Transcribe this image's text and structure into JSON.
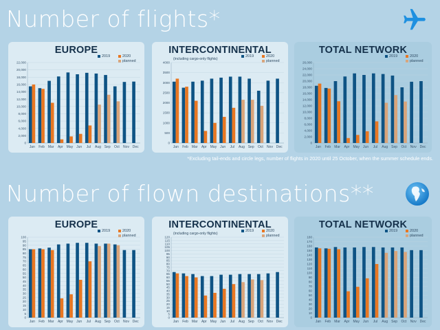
{
  "sections": [
    {
      "title": "Number of flights*"
    },
    {
      "title": "Number of flown destinations**"
    }
  ],
  "footnote": "*Excluding tail-ends and circle legs, number of flights in 2020 until 25 October, when the summer schedule ends.",
  "legend": {
    "y2019": "2019",
    "y2020": "2020",
    "planned": "planned"
  },
  "colors": {
    "y2019": "#0e5384",
    "y2020": "#e87722",
    "planned": "#d9a47a"
  },
  "chart_data": [
    {
      "type": "bar",
      "title": "EUROPE",
      "subtitle": "",
      "categories": [
        "Jan",
        "Feb",
        "Mar",
        "Apr",
        "May",
        "Jun",
        "Jul",
        "Aug",
        "Sep",
        "Oct",
        "Nov",
        "Dec"
      ],
      "yticks": [
        "0",
        "2,000",
        "4,000",
        "6,000",
        "8,000",
        "10,000",
        "12,000",
        "14,000",
        "16,000",
        "18,000",
        "20,000",
        "22,000"
      ],
      "ylim": [
        0,
        22000
      ],
      "series": [
        {
          "name": "2019",
          "values": [
            15500,
            15000,
            17000,
            18200,
            19300,
            18800,
            19200,
            19000,
            18600,
            15500,
            16700,
            16800
          ]
        },
        {
          "name": "2020",
          "values": [
            16000,
            14800,
            11000,
            1000,
            1800,
            2500,
            4800,
            10500,
            13200,
            11400,
            null,
            null
          ],
          "planned": [
            false,
            false,
            false,
            false,
            false,
            false,
            false,
            true,
            true,
            true,
            false,
            false
          ]
        }
      ]
    },
    {
      "type": "bar",
      "title": "INTERCONTINENTAL",
      "subtitle": "(including cargo-only flights)",
      "categories": [
        "Jan",
        "Feb",
        "Mar",
        "Apr",
        "May",
        "Jun",
        "Jul",
        "Aug",
        "Sep",
        "Oct",
        "Nov",
        "Dec"
      ],
      "yticks": [
        "0",
        "500",
        "1000",
        "1500",
        "2000",
        "2500",
        "3000",
        "3500",
        "4000"
      ],
      "ylim": [
        0,
        4000
      ],
      "series": [
        {
          "name": "2019",
          "values": [
            3050,
            2750,
            3050,
            3100,
            3200,
            3250,
            3300,
            3300,
            3200,
            2600,
            3100,
            3200
          ]
        },
        {
          "name": "2020",
          "values": [
            3200,
            2800,
            2100,
            600,
            1000,
            1300,
            1750,
            2150,
            2150,
            1850,
            null,
            null
          ],
          "planned": [
            false,
            false,
            false,
            false,
            false,
            false,
            false,
            true,
            true,
            true,
            false,
            false
          ]
        }
      ]
    },
    {
      "type": "bar",
      "title": "TOTAL NETWORK",
      "subtitle": "",
      "categories": [
        "Jan",
        "Feb",
        "Mar",
        "Apr",
        "May",
        "Jun",
        "Jul",
        "Aug",
        "Sep",
        "Oct",
        "Nov",
        "Dec"
      ],
      "yticks": [
        "0",
        "2,000",
        "4,000",
        "6,000",
        "8,000",
        "10,000",
        "12,000",
        "14,000",
        "16,000",
        "18,000",
        "20,000",
        "22,000",
        "24,000",
        "26,000"
      ],
      "ylim": [
        0,
        26000
      ],
      "series": [
        {
          "name": "2019",
          "values": [
            18500,
            17800,
            20000,
            21500,
            22500,
            22000,
            22500,
            22300,
            21800,
            18000,
            19800,
            20000
          ]
        },
        {
          "name": "2020",
          "values": [
            19200,
            17600,
            13500,
            1600,
            2600,
            3800,
            7000,
            13000,
            15500,
            13400,
            null,
            null
          ],
          "planned": [
            false,
            false,
            false,
            false,
            false,
            false,
            false,
            true,
            true,
            true,
            false,
            false
          ]
        }
      ]
    },
    {
      "type": "bar",
      "title": "EUROPE",
      "subtitle": "",
      "categories": [
        "Jan",
        "Feb",
        "Mar",
        "Apr",
        "May",
        "Jun",
        "Jul",
        "Aug",
        "Sep",
        "Oct",
        "Nov",
        "Dec"
      ],
      "yticks": [
        "0",
        "5",
        "10",
        "15",
        "20",
        "25",
        "30",
        "35",
        "40",
        "45",
        "50",
        "55",
        "60",
        "65",
        "70",
        "75",
        "80",
        "85",
        "90",
        "95",
        "100"
      ],
      "ylim": [
        0,
        100
      ],
      "series": [
        {
          "name": "2019",
          "values": [
            85,
            86,
            87,
            91,
            92,
            93,
            93,
            92,
            92,
            91,
            84,
            84
          ]
        },
        {
          "name": "2020",
          "values": [
            85,
            85,
            84,
            24,
            29,
            47,
            70,
            89,
            92,
            90,
            null,
            null
          ],
          "planned": [
            false,
            false,
            false,
            false,
            false,
            false,
            false,
            true,
            true,
            true,
            false,
            false
          ]
        }
      ]
    },
    {
      "type": "bar",
      "title": "INTERCONTINENTAL",
      "subtitle": "(including cargo-only flights)",
      "categories": [
        "Jan",
        "Feb",
        "Mar",
        "Apr",
        "May",
        "Jun",
        "Jul",
        "Aug",
        "Sep",
        "Oct",
        "Nov",
        "Dec"
      ],
      "yticks": [
        "0",
        "5",
        "10",
        "15",
        "20",
        "25",
        "30",
        "35",
        "40",
        "45",
        "50",
        "55",
        "60",
        "65",
        "70",
        "75",
        "80",
        "85",
        "90",
        "95",
        "100",
        "105",
        "110",
        "115",
        "120"
      ],
      "ylim": [
        0,
        120
      ],
      "series": [
        {
          "name": "2019",
          "values": [
            68,
            66,
            65,
            62,
            62,
            64,
            64,
            65,
            65,
            65,
            66,
            68
          ]
        },
        {
          "name": "2020",
          "values": [
            66,
            62,
            60,
            33,
            37,
            43,
            50,
            53,
            57,
            56,
            null,
            null
          ],
          "planned": [
            false,
            false,
            false,
            false,
            false,
            false,
            false,
            true,
            true,
            true,
            false,
            false
          ]
        }
      ]
    },
    {
      "type": "bar",
      "title": "TOTAL NETWORK",
      "subtitle": "",
      "categories": [
        "Jan",
        "Feb",
        "Mar",
        "Apr",
        "May",
        "Jun",
        "Jul",
        "Aug",
        "Sep",
        "Oct",
        "Nov",
        "Dec"
      ],
      "yticks": [
        "0",
        "10",
        "20",
        "30",
        "40",
        "50",
        "60",
        "70",
        "80",
        "90",
        "100",
        "110",
        "120",
        "130",
        "140",
        "150",
        "160",
        "170",
        "180"
      ],
      "ylim": [
        0,
        180
      ],
      "series": [
        {
          "name": "2019",
          "values": [
            157,
            155,
            158,
            157,
            157,
            158,
            158,
            157,
            157,
            157,
            151,
            151
          ]
        },
        {
          "name": "2020",
          "values": [
            155,
            154,
            153,
            59,
            69,
            88,
            120,
            145,
            149,
            147,
            null,
            null
          ],
          "planned": [
            false,
            false,
            false,
            false,
            false,
            false,
            false,
            true,
            true,
            true,
            false,
            false
          ]
        }
      ]
    }
  ]
}
